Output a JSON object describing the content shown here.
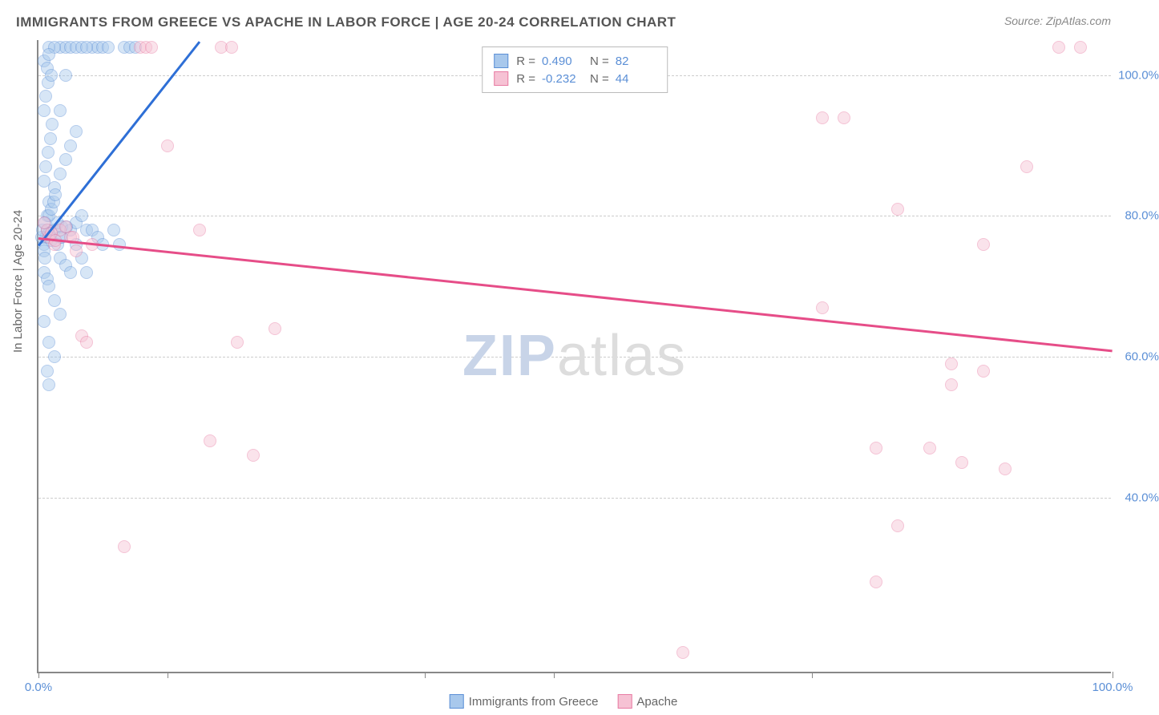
{
  "title": "IMMIGRANTS FROM GREECE VS APACHE IN LABOR FORCE | AGE 20-24 CORRELATION CHART",
  "source": "Source: ZipAtlas.com",
  "ylabel": "In Labor Force | Age 20-24",
  "watermark_a": "ZIP",
  "watermark_b": "atlas",
  "chart": {
    "type": "scatter",
    "background_color": "#ffffff",
    "grid_color": "#cccccc",
    "axis_color": "#888888",
    "tick_color": "#5b8fd6",
    "tick_fontsize": 15,
    "xlim": [
      0,
      100
    ],
    "ylim": [
      15,
      105
    ],
    "y_ticks": [
      {
        "value": 40,
        "label": "40.0%"
      },
      {
        "value": 60,
        "label": "60.0%"
      },
      {
        "value": 80,
        "label": "80.0%"
      },
      {
        "value": 100,
        "label": "100.0%"
      }
    ],
    "x_ticks": [
      {
        "value": 0,
        "label": "0.0%"
      },
      {
        "value": 12,
        "label": ""
      },
      {
        "value": 36,
        "label": ""
      },
      {
        "value": 48,
        "label": ""
      },
      {
        "value": 72,
        "label": ""
      },
      {
        "value": 100,
        "label": "100.0%"
      }
    ],
    "marker_radius": 8,
    "marker_opacity": 0.45,
    "series": [
      {
        "name": "Immigrants from Greece",
        "color_fill": "#a8c8ec",
        "color_stroke": "#5b8fd6",
        "trend": {
          "x1": 0,
          "y1": 76,
          "x2": 15,
          "y2": 105,
          "color": "#2e6fd6",
          "width": 2.5
        },
        "stats": {
          "R": "0.490",
          "N": "82"
        },
        "points": [
          [
            0.5,
            76
          ],
          [
            0.7,
            77
          ],
          [
            0.8,
            78
          ],
          [
            1.0,
            77.5
          ],
          [
            1.2,
            76.5
          ],
          [
            0.5,
            75
          ],
          [
            0.6,
            74
          ],
          [
            1.5,
            78
          ],
          [
            1.8,
            79
          ],
          [
            2.0,
            77
          ],
          [
            2.2,
            78.5
          ],
          [
            0.8,
            80
          ],
          [
            1.0,
            82
          ],
          [
            1.5,
            84
          ],
          [
            2.0,
            86
          ],
          [
            2.5,
            88
          ],
          [
            3.0,
            90
          ],
          [
            3.5,
            92
          ],
          [
            2.0,
            95
          ],
          [
            2.5,
            100
          ],
          [
            0.5,
            72
          ],
          [
            0.8,
            71
          ],
          [
            1.0,
            70
          ],
          [
            1.5,
            68
          ],
          [
            2.0,
            66
          ],
          [
            0.5,
            65
          ],
          [
            1.0,
            62
          ],
          [
            1.5,
            60
          ],
          [
            0.8,
            58
          ],
          [
            1.0,
            56
          ],
          [
            3.0,
            78
          ],
          [
            3.5,
            79
          ],
          [
            4.0,
            80
          ],
          [
            4.5,
            78
          ],
          [
            5.0,
            104
          ],
          [
            5.5,
            104
          ],
          [
            6.0,
            104
          ],
          [
            6.5,
            104
          ],
          [
            7.0,
            78
          ],
          [
            7.5,
            76
          ],
          [
            2.0,
            104
          ],
          [
            2.5,
            104
          ],
          [
            3.0,
            104
          ],
          [
            3.5,
            104
          ],
          [
            4.0,
            104
          ],
          [
            4.5,
            104
          ],
          [
            1.0,
            104
          ],
          [
            1.5,
            104
          ],
          [
            8.0,
            104
          ],
          [
            8.5,
            104
          ],
          [
            9.0,
            104
          ],
          [
            0.5,
            85
          ],
          [
            0.7,
            87
          ],
          [
            0.9,
            89
          ],
          [
            1.1,
            91
          ],
          [
            1.3,
            93
          ],
          [
            0.5,
            95
          ],
          [
            0.7,
            97
          ],
          [
            0.9,
            99
          ],
          [
            3.5,
            76
          ],
          [
            4.0,
            74
          ],
          [
            4.5,
            72
          ],
          [
            5.0,
            78
          ],
          [
            5.5,
            77
          ],
          [
            6.0,
            76
          ],
          [
            1.0,
            80
          ],
          [
            1.2,
            81
          ],
          [
            1.4,
            82
          ],
          [
            1.6,
            83
          ],
          [
            2.0,
            74
          ],
          [
            2.5,
            73
          ],
          [
            3.0,
            72
          ],
          [
            0.3,
            77
          ],
          [
            0.4,
            78
          ],
          [
            0.6,
            79
          ],
          [
            1.8,
            76
          ],
          [
            2.2,
            77
          ],
          [
            2.6,
            78.5
          ],
          [
            0.5,
            102
          ],
          [
            0.8,
            101
          ],
          [
            1.0,
            103
          ],
          [
            1.2,
            100
          ]
        ]
      },
      {
        "name": "Apache",
        "color_fill": "#f6c2d4",
        "color_stroke": "#e87ba3",
        "trend": {
          "x1": 0,
          "y1": 77,
          "x2": 100,
          "y2": 61,
          "color": "#e64d88",
          "width": 2.5
        },
        "stats": {
          "R": "-0.232",
          "N": "44"
        },
        "points": [
          [
            1.0,
            77
          ],
          [
            1.5,
            76
          ],
          [
            2.0,
            78
          ],
          [
            3.0,
            77
          ],
          [
            3.5,
            75
          ],
          [
            9.5,
            104
          ],
          [
            10.0,
            104
          ],
          [
            10.5,
            104
          ],
          [
            17.0,
            104
          ],
          [
            18.0,
            104
          ],
          [
            8.0,
            33
          ],
          [
            12.0,
            90
          ],
          [
            15.0,
            78
          ],
          [
            16.0,
            48
          ],
          [
            18.5,
            62
          ],
          [
            20.0,
            46
          ],
          [
            22.0,
            64
          ],
          [
            60.0,
            18
          ],
          [
            73.0,
            94
          ],
          [
            75.0,
            94
          ],
          [
            80.0,
            81
          ],
          [
            85.0,
            56
          ],
          [
            88.0,
            76
          ],
          [
            92.0,
            87
          ],
          [
            78.0,
            28
          ],
          [
            80.0,
            36
          ],
          [
            83.0,
            47
          ],
          [
            86.0,
            45
          ],
          [
            90.0,
            44
          ],
          [
            85.0,
            59
          ],
          [
            88.0,
            58
          ],
          [
            95.0,
            104
          ],
          [
            97.0,
            104
          ],
          [
            0.8,
            78
          ],
          [
            1.2,
            77.5
          ],
          [
            1.6,
            76.5
          ],
          [
            2.5,
            78.5
          ],
          [
            3.2,
            77
          ],
          [
            4.0,
            63
          ],
          [
            4.5,
            62
          ],
          [
            5.0,
            76
          ],
          [
            0.5,
            79
          ],
          [
            78.0,
            47
          ],
          [
            73.0,
            67
          ]
        ]
      }
    ]
  },
  "legend_top": [
    {
      "series": 0
    },
    {
      "series": 1
    }
  ],
  "legend_bottom": [
    {
      "series": 0
    },
    {
      "series": 1
    }
  ]
}
